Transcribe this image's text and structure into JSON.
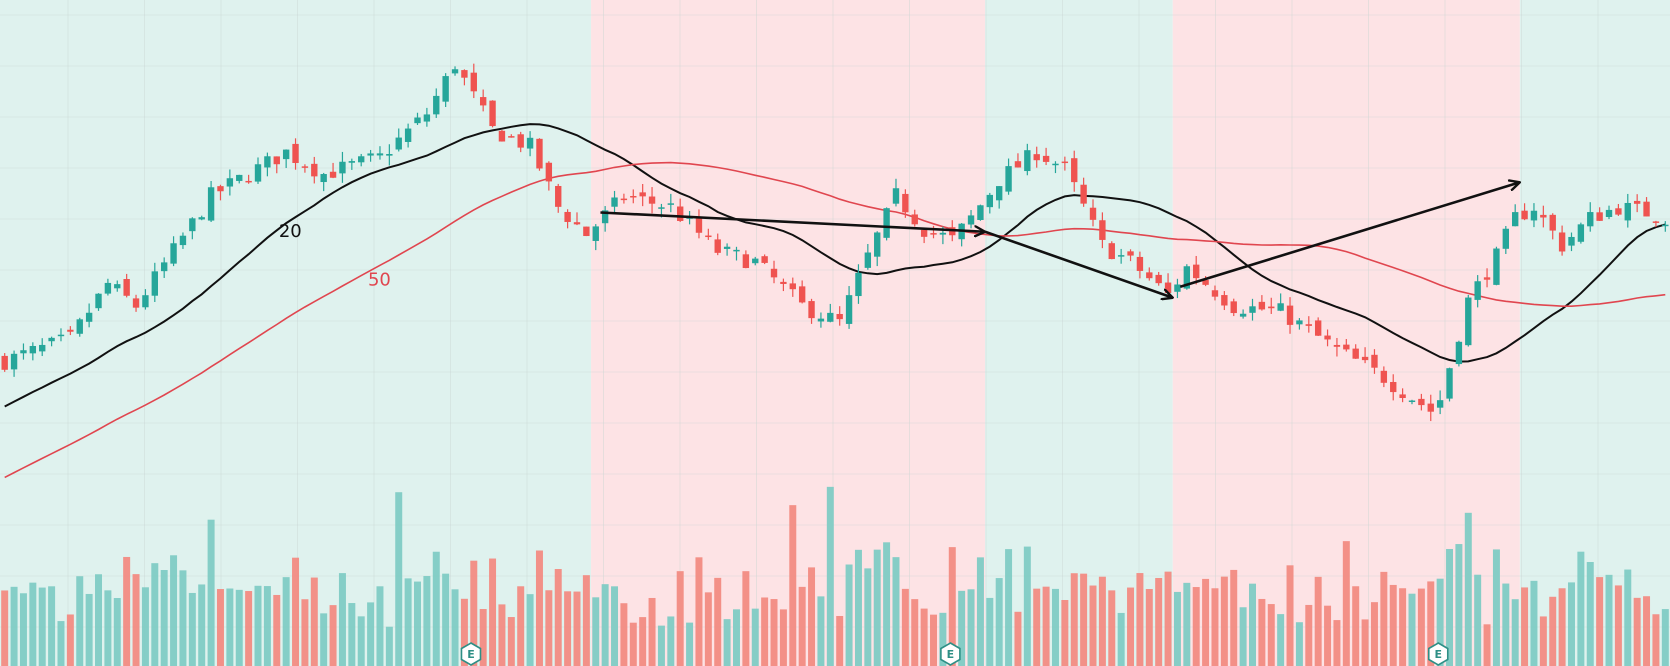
{
  "chart_data": {
    "type": "candlestick",
    "title": "",
    "xlabel": "",
    "ylabel": "",
    "price_range": [
      40,
      120
    ],
    "volume_range": [
      0,
      100
    ],
    "grid": true,
    "legend": "none",
    "colors": {
      "up": "#26a69a",
      "down": "#ef5350",
      "up_volume": "#80cbc4",
      "down_volume": "#f28b82",
      "up_zone_bg": "#dff2ee",
      "down_zone_bg": "#fde3e5",
      "ma20": "#111111",
      "ma50": "#e0464f",
      "annotation_arrow": "#111111",
      "grid": "#c9d5d3"
    },
    "zones": [
      {
        "trend": "up",
        "start_bar": 0,
        "end_bar": 63
      },
      {
        "trend": "down",
        "start_bar": 63,
        "end_bar": 105
      },
      {
        "trend": "up",
        "start_bar": 105,
        "end_bar": 125
      },
      {
        "trend": "down",
        "start_bar": 125,
        "end_bar": 162
      },
      {
        "trend": "up",
        "start_bar": 162,
        "end_bar": 178
      }
    ],
    "waypoints": [
      [
        0,
        58
      ],
      [
        7,
        62
      ],
      [
        11,
        72
      ],
      [
        14,
        68
      ],
      [
        22,
        88
      ],
      [
        27,
        93
      ],
      [
        30,
        96
      ],
      [
        34,
        92
      ],
      [
        40,
        95
      ],
      [
        45,
        103
      ],
      [
        48,
        112
      ],
      [
        52,
        100
      ],
      [
        56,
        97
      ],
      [
        59,
        86
      ],
      [
        62,
        81
      ],
      [
        66,
        88
      ],
      [
        71,
        86
      ],
      [
        76,
        78
      ],
      [
        80,
        76
      ],
      [
        85,
        68
      ],
      [
        89,
        65
      ],
      [
        92,
        77
      ],
      [
        95,
        88
      ],
      [
        98,
        82
      ],
      [
        101,
        80
      ],
      [
        103,
        84
      ],
      [
        106,
        91
      ],
      [
        110,
        96
      ],
      [
        113,
        93
      ],
      [
        117,
        79
      ],
      [
        120,
        76
      ],
      [
        124,
        70
      ],
      [
        126,
        75
      ],
      [
        131,
        68
      ],
      [
        136,
        67
      ],
      [
        142,
        60
      ],
      [
        147,
        55
      ],
      [
        152,
        49
      ],
      [
        153,
        51
      ],
      [
        156,
        69
      ],
      [
        159,
        77
      ],
      [
        161,
        84
      ],
      [
        163,
        86
      ],
      [
        166,
        79
      ],
      [
        169,
        84
      ],
      [
        172,
        86
      ],
      [
        175,
        85
      ],
      [
        177,
        84
      ]
    ],
    "moving_averages": [
      {
        "name": "20",
        "period": 20,
        "label_bar": 30.5
      },
      {
        "name": "50",
        "period": 50,
        "label_bar": 40
      }
    ],
    "arrows": [
      {
        "from": [
          63.5,
          85
        ],
        "to": [
          104.5,
          81.5
        ]
      },
      {
        "from": [
          104.5,
          81.5
        ],
        "to": [
          124.5,
          69.5
        ]
      },
      {
        "from": [
          125.3,
          71.5
        ],
        "to": [
          161.5,
          90.5
        ]
      }
    ],
    "earnings_markers": [
      {
        "bar": 49.7,
        "label": "E"
      },
      {
        "bar": 100.8,
        "label": "E"
      },
      {
        "bar": 152.8,
        "label": "E"
      }
    ]
  }
}
